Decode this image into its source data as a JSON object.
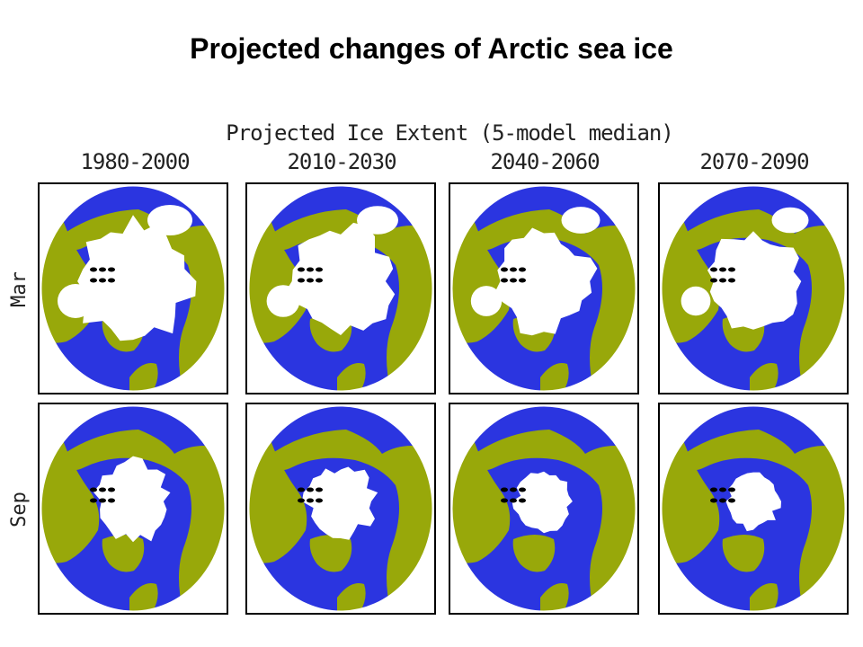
{
  "title": "Projected changes of Arctic sea ice",
  "figure": {
    "subtitle": "Projected Ice Extent (5-model median)",
    "periods": [
      "1980-2000",
      "2010-2030",
      "2040-2060",
      "2070-2090"
    ],
    "months": [
      "Mar",
      "Sep"
    ]
  },
  "colors": {
    "ocean": "#2b35e0",
    "land": "#98a80a",
    "ice": "#ffffff",
    "border": "#000000"
  }
}
